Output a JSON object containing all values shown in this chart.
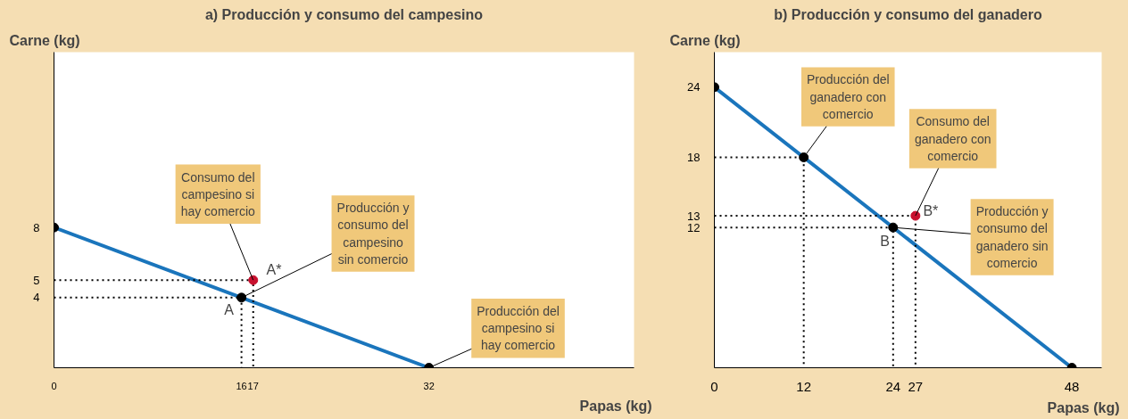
{
  "chart_data": [
    {
      "type": "line",
      "title": "a) Producción y consumo del campesino",
      "xlabel": "Papas (kg)",
      "ylabel": "Carne (kg)",
      "xlim": [
        0,
        49.5
      ],
      "ylim": [
        0,
        18
      ],
      "xticks": [
        0,
        16,
        17,
        32
      ],
      "yticks": [
        4,
        5,
        8
      ],
      "grid": false,
      "line_style": "solid",
      "series": [
        {
          "type": "line",
          "color": "#1a75bc",
          "x": [
            0,
            32
          ],
          "values": [
            8,
            0
          ]
        },
        {
          "type": "line",
          "line_style": "dotted",
          "color": "#000000",
          "x": [
            0,
            16,
            16
          ],
          "values": [
            4,
            4,
            0
          ]
        },
        {
          "type": "line",
          "line_style": "dotted",
          "color": "#000000",
          "x": [
            0,
            17,
            17
          ],
          "values": [
            5,
            5,
            0
          ]
        },
        {
          "type": "scatter",
          "marker": "circle",
          "color": "#000000",
          "x": [
            0,
            16,
            32
          ],
          "values": [
            8,
            4,
            0
          ]
        },
        {
          "type": "scatter",
          "marker": "circle",
          "color": "#c8102e",
          "x": [
            17
          ],
          "values": [
            5
          ]
        }
      ],
      "annotations": [
        {
          "text": "Consumo del\ncampesino si\nhay comercio",
          "x": 17,
          "y": 5
        },
        {
          "text": "Producción y\nconsumo del\ncampesino\nsin comercio",
          "x": 16,
          "y": 4
        },
        {
          "text": "Producción del\ncampesino si\nhay comercio",
          "x": 32,
          "y": 0
        },
        {
          "text": "A",
          "x": 16,
          "y": 4
        },
        {
          "text": "A*",
          "x": 17,
          "y": 5
        }
      ]
    },
    {
      "type": "line",
      "title": "b) Producción y consumo del ganadero",
      "xlabel": "Papas (kg)",
      "ylabel": "Carne (kg)",
      "xlim": [
        0,
        52
      ],
      "ylim": [
        0,
        27
      ],
      "xticks": [
        0,
        12,
        24,
        27,
        48
      ],
      "yticks": [
        12,
        13,
        18,
        24
      ],
      "grid": false,
      "line_style": "solid",
      "series": [
        {
          "type": "line",
          "color": "#1a75bc",
          "x": [
            0,
            48
          ],
          "values": [
            24,
            0
          ]
        },
        {
          "type": "line",
          "line_style": "dotted",
          "color": "#000000",
          "x": [
            0,
            12,
            12
          ],
          "values": [
            18,
            18,
            0
          ]
        },
        {
          "type": "line",
          "line_style": "dotted",
          "color": "#000000",
          "x": [
            0,
            27,
            27
          ],
          "values": [
            13,
            13,
            0
          ]
        },
        {
          "type": "line",
          "line_style": "dotted",
          "color": "#000000",
          "x": [
            0,
            24,
            24
          ],
          "values": [
            12,
            12,
            0
          ]
        },
        {
          "type": "scatter",
          "marker": "circle",
          "color": "#000000",
          "x": [
            0,
            12,
            24,
            48
          ],
          "values": [
            24,
            18,
            12,
            0
          ]
        },
        {
          "type": "scatter",
          "marker": "circle",
          "color": "#c8102e",
          "x": [
            27
          ],
          "values": [
            13
          ]
        }
      ],
      "annotations": [
        {
          "text": "Producción del\nganadero con\ncomercio",
          "x": 12,
          "y": 18
        },
        {
          "text": "Consumo del\nganadero con\ncomercio",
          "x": 27,
          "y": 13
        },
        {
          "text": "Producción y\nconsumo del\nganadero sin\ncomercio",
          "x": 24,
          "y": 12
        },
        {
          "text": "B",
          "x": 24,
          "y": 12
        },
        {
          "text": "B*",
          "x": 27,
          "y": 13
        }
      ]
    }
  ]
}
